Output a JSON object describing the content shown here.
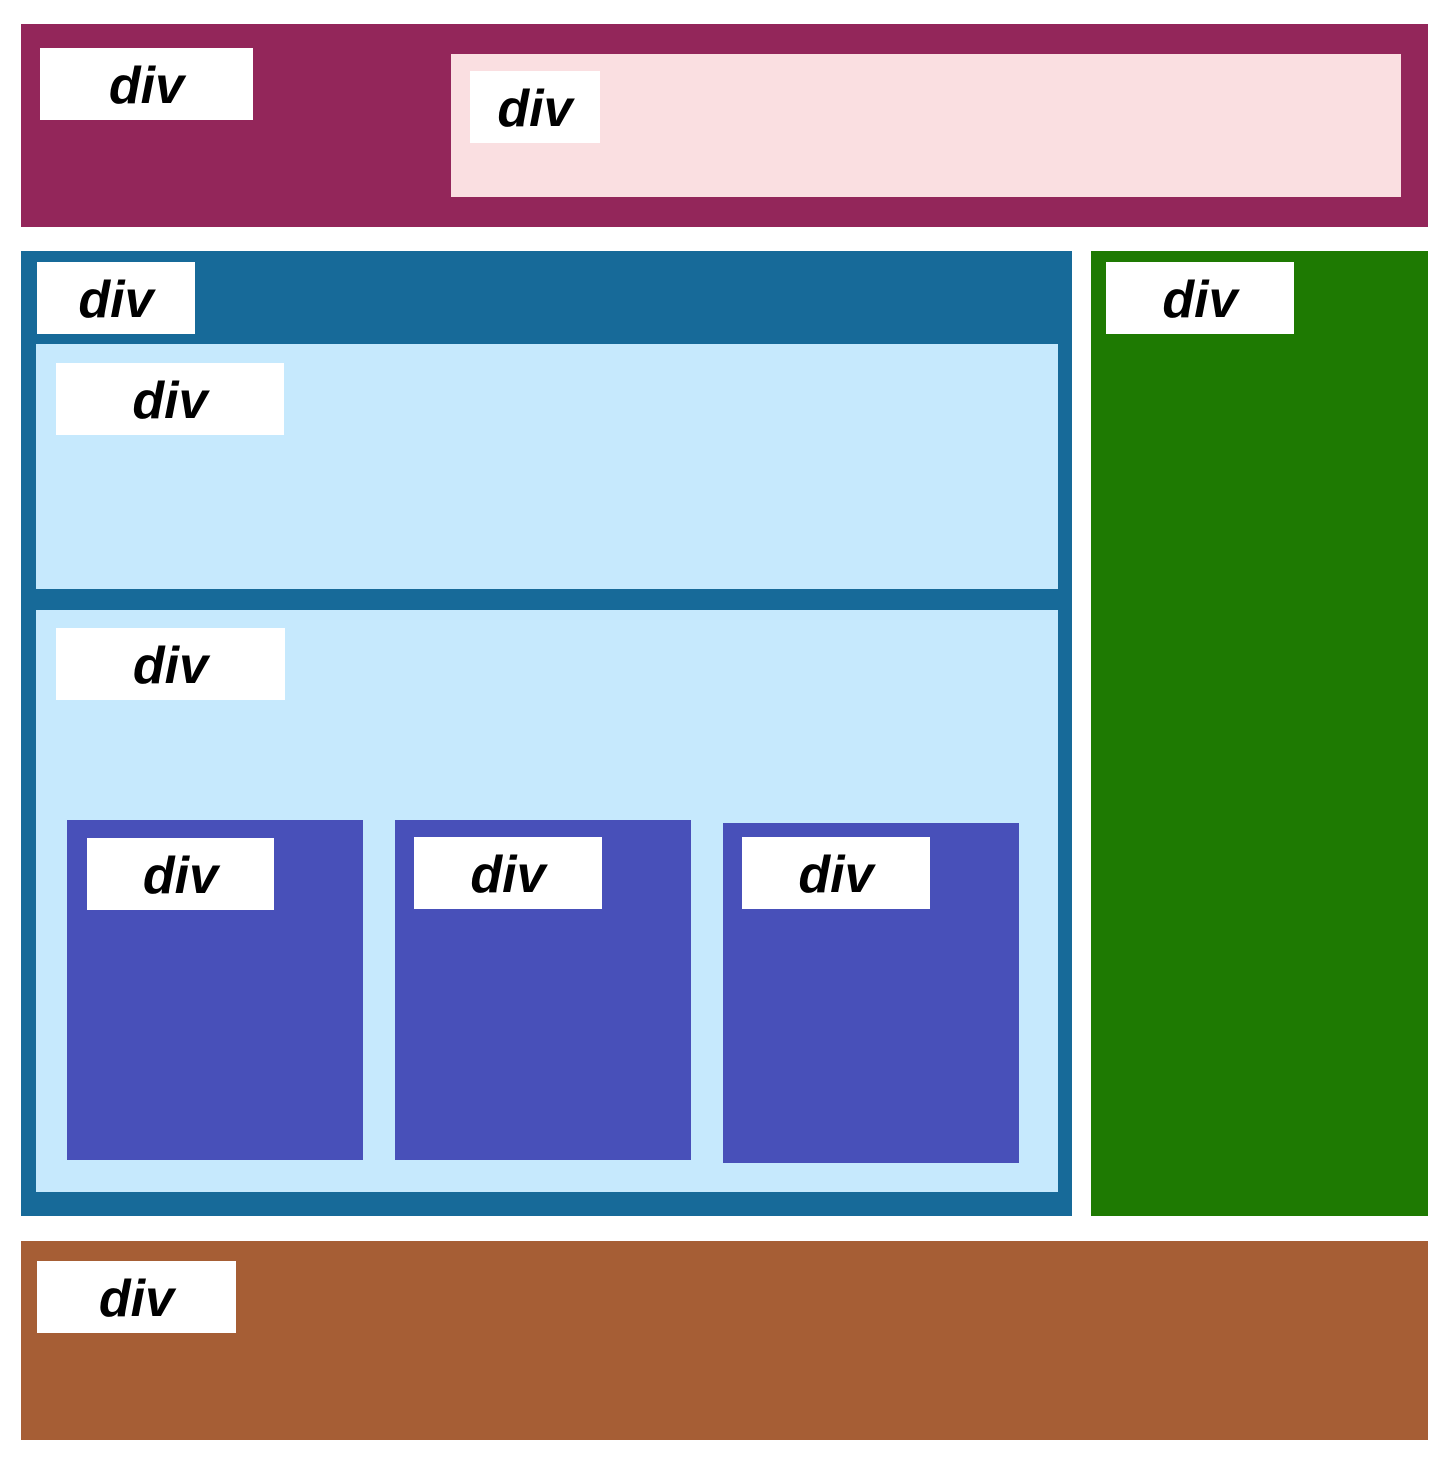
{
  "label_text": "div",
  "colors": {
    "header": "#93265a",
    "header_inner": "#fadfe1",
    "main": "#176a99",
    "main_section": "#c6e9fd",
    "card": "#4850b9",
    "sidebar": "#1e7a02",
    "footer": "#a65e35",
    "label_bg": "#ffffff"
  },
  "header": {
    "label": "div",
    "inner": {
      "label": "div"
    }
  },
  "main": {
    "label": "div",
    "section_top": {
      "label": "div"
    },
    "section_bottom": {
      "label": "div",
      "cards": [
        {
          "label": "div"
        },
        {
          "label": "div"
        },
        {
          "label": "div"
        }
      ]
    }
  },
  "sidebar": {
    "label": "div"
  },
  "footer": {
    "label": "div"
  }
}
